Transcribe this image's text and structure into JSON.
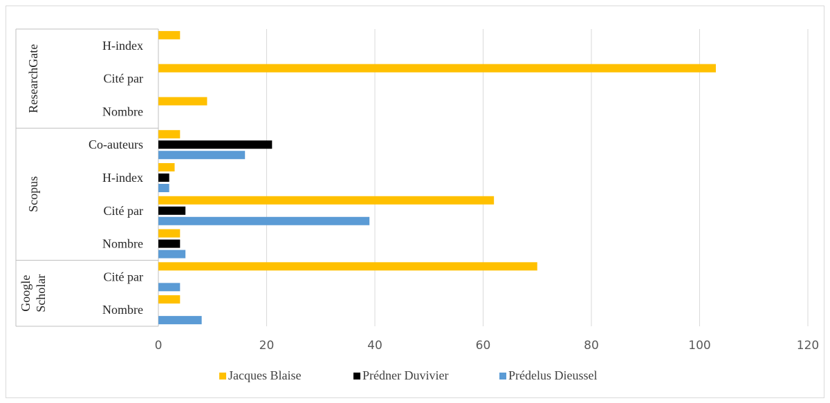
{
  "chart_data": {
    "type": "bar",
    "orientation": "horizontal",
    "xlim": [
      0,
      120
    ],
    "x_ticks": [
      "0",
      "20",
      "40",
      "60",
      "80",
      "100",
      "120"
    ],
    "grid": "vertical",
    "legend_position": "bottom",
    "groups": [
      {
        "name": "Google Scholar",
        "lines": [
          "Google",
          "Scholar"
        ],
        "categories": [
          "Nombre",
          "Cité par"
        ]
      },
      {
        "name": "Scopus",
        "lines": [
          "Scopus"
        ],
        "categories": [
          "Nombre",
          "Cité par",
          "H-index",
          "Co-auteurs"
        ]
      },
      {
        "name": "ResearchGate",
        "lines": [
          "ResearchGate"
        ],
        "categories": [
          "Nombre",
          "Cité par",
          "H-index"
        ]
      }
    ],
    "series": [
      {
        "name": "Jacques Blaise",
        "color": "#FFC000",
        "values": [
          4,
          70,
          4,
          62,
          3,
          4,
          9,
          103,
          4
        ]
      },
      {
        "name": "Prédner Duvivier",
        "color": "#000000",
        "values": [
          0,
          0,
          4,
          5,
          2,
          21,
          0,
          0,
          0
        ]
      },
      {
        "name": "Prédelus Dieussel",
        "color": "#5B9BD5",
        "values": [
          8,
          4,
          5,
          39,
          2,
          16,
          0,
          0,
          0
        ]
      }
    ]
  }
}
